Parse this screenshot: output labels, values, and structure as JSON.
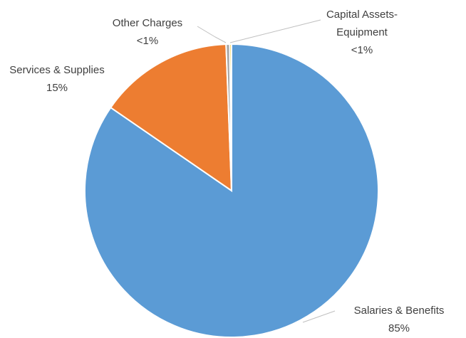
{
  "chart_data": {
    "type": "pie",
    "categories": [
      "Salaries & Benefits",
      "Services & Supplies",
      "Other Charges",
      "Capital Assets-Equipment"
    ],
    "values": [
      84.6,
      14.8,
      0.4,
      0.2
    ],
    "value_labels": [
      "85%",
      "15%",
      "<1%",
      "<1%"
    ],
    "colors": [
      "#5b9bd5",
      "#ed7d31",
      "#a5a5a5",
      "#ffc000"
    ]
  }
}
